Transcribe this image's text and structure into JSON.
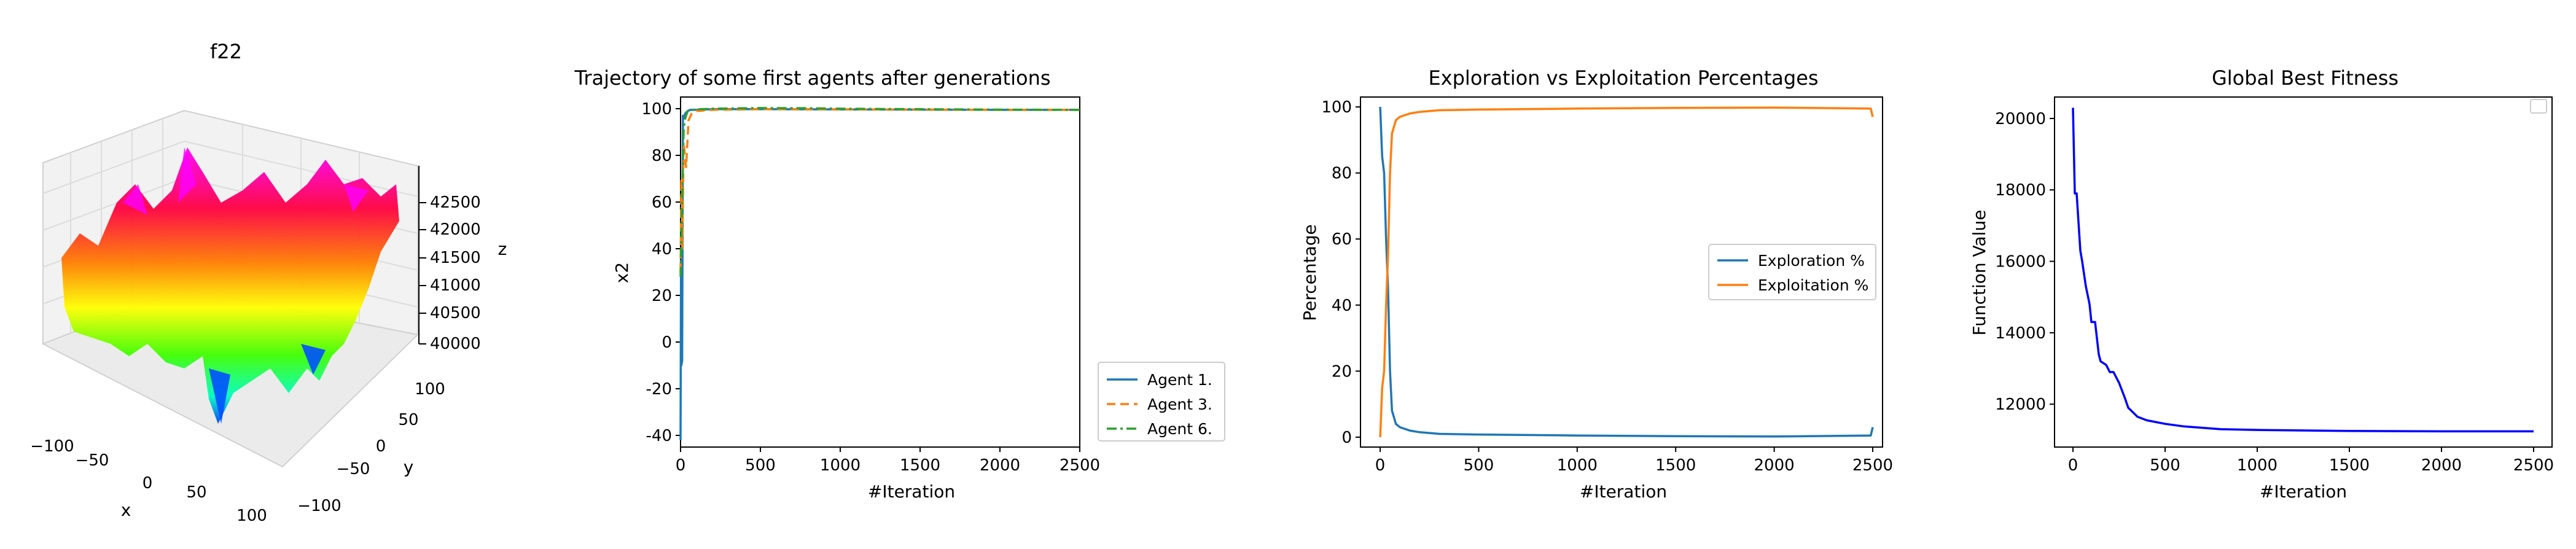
{
  "chart_data": [
    {
      "type": "surface3d",
      "title": "f22",
      "xlabel": "x",
      "ylabel": "y",
      "zlabel": "z",
      "x_ticks": [
        "−100",
        "−50",
        "0",
        "50",
        "100"
      ],
      "y_ticks": [
        "100",
        "50",
        "0",
        "−50",
        "−100"
      ],
      "z_ticks": [
        "42500",
        "42000",
        "41500",
        "41000",
        "40500",
        "40000"
      ],
      "xlim": [
        -100,
        100
      ],
      "ylim": [
        -100,
        100
      ],
      "zlim": [
        40000,
        42500
      ],
      "colormap": "gist_rainbow"
    },
    {
      "type": "line",
      "title": "Trajectory of some first agents after generations",
      "xlabel": "#Iteration",
      "ylabel": "x2",
      "xlim": [
        0,
        2500
      ],
      "ylim": [
        -45,
        105
      ],
      "x_ticks": [
        0,
        500,
        1000,
        1500,
        2000,
        2500
      ],
      "y_ticks": [
        -40,
        -20,
        0,
        20,
        40,
        60,
        80,
        100
      ],
      "legend": "bottom-right",
      "series": [
        {
          "name": "Agent 1.",
          "color": "#1f77b4",
          "dash": "solid",
          "x": [
            0,
            3,
            5,
            10,
            15,
            20,
            30,
            45,
            60,
            100,
            200,
            500,
            1000,
            1500,
            2000,
            2500
          ],
          "y": [
            -42,
            35,
            -10,
            -8,
            97,
            96,
            98,
            99,
            99.5,
            99.5,
            99.8,
            99.8,
            99.7,
            99.6,
            99.5,
            99.5
          ]
        },
        {
          "name": "Agent 3.",
          "color": "#ff7f0e",
          "dash": "dashed",
          "x": [
            0,
            5,
            10,
            20,
            35,
            50,
            70,
            100,
            200,
            500,
            1000,
            1500,
            2000,
            2500
          ],
          "y": [
            30,
            70,
            40,
            85,
            75,
            95,
            98,
            99,
            99.5,
            99.8,
            99.7,
            99.6,
            99.5,
            99.5
          ]
        },
        {
          "name": "Agent 6.",
          "color": "#2ca02c",
          "dash": "dashdot",
          "x": [
            0,
            5,
            10,
            20,
            30,
            45,
            70,
            100,
            200,
            500,
            800,
            1000,
            1500,
            2000,
            2500
          ],
          "y": [
            28,
            45,
            60,
            92,
            96,
            99,
            99.5,
            99.7,
            100,
            100.3,
            100.2,
            100,
            99.8,
            99.6,
            99.5
          ]
        }
      ]
    },
    {
      "type": "line",
      "title": "Exploration vs Exploitation Percentages",
      "xlabel": "#Iteration",
      "ylabel": "Percentage",
      "xlim": [
        -100,
        2550
      ],
      "ylim": [
        -3,
        103
      ],
      "x_ticks": [
        0,
        500,
        1000,
        1500,
        2000,
        2500
      ],
      "y_ticks": [
        0,
        20,
        40,
        60,
        80,
        100
      ],
      "legend": "center-right",
      "series": [
        {
          "name": "Exploration %",
          "color": "#1f77b4",
          "dash": "solid",
          "x": [
            0,
            10,
            20,
            30,
            40,
            50,
            60,
            80,
            100,
            150,
            200,
            300,
            500,
            1000,
            1500,
            2000,
            2490,
            2500
          ],
          "y": [
            100,
            85,
            80,
            60,
            45,
            20,
            8,
            4,
            3,
            2,
            1.5,
            1,
            0.8,
            0.5,
            0.3,
            0.2,
            0.5,
            3
          ]
        },
        {
          "name": "Exploitation %",
          "color": "#ff7f0e",
          "dash": "solid",
          "x": [
            0,
            10,
            20,
            30,
            40,
            50,
            60,
            80,
            100,
            150,
            200,
            300,
            500,
            1000,
            1500,
            2000,
            2490,
            2500
          ],
          "y": [
            0,
            15,
            20,
            40,
            55,
            80,
            92,
            96,
            97,
            98,
            98.5,
            99,
            99.2,
            99.5,
            99.7,
            99.8,
            99.5,
            97
          ]
        }
      ]
    },
    {
      "type": "line",
      "title": "Global Best Fitness",
      "xlabel": "#Iteration",
      "ylabel": "Function Value",
      "xlim": [
        -100,
        2600
      ],
      "ylim": [
        10800,
        20600
      ],
      "x_ticks": [
        0,
        500,
        1000,
        1500,
        2000,
        2500
      ],
      "y_ticks": [
        12000,
        14000,
        16000,
        18000,
        20000
      ],
      "legend": "top-right",
      "series": [
        {
          "color": "#0000ff",
          "dash": "solid",
          "x": [
            0,
            10,
            20,
            40,
            50,
            70,
            90,
            100,
            120,
            140,
            150,
            180,
            200,
            220,
            250,
            280,
            300,
            320,
            350,
            400,
            500,
            600,
            800,
            1000,
            1500,
            2000,
            2500
          ],
          "y": [
            20300,
            17900,
            17900,
            16300,
            16000,
            15300,
            14800,
            14300,
            14300,
            13400,
            13200,
            13100,
            12900,
            12900,
            12600,
            12200,
            11900,
            11800,
            11650,
            11550,
            11450,
            11380,
            11300,
            11280,
            11250,
            11240,
            11240
          ]
        }
      ]
    }
  ]
}
